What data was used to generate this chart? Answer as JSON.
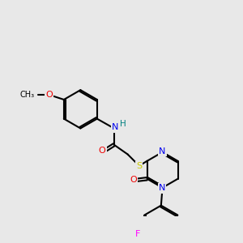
{
  "background_color": "#e8e8e8",
  "bond_color": "#000000",
  "bond_lw": 1.5,
  "atom_colors": {
    "N": "#0000ee",
    "O": "#ee0000",
    "S": "#cccc00",
    "F": "#ff00ff",
    "H": "#008080"
  },
  "font_size": 7.5,
  "figsize": [
    3.0,
    3.0
  ],
  "dpi": 100
}
